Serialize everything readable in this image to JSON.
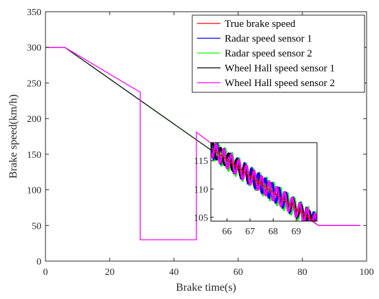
{
  "chart_data": {
    "type": "line",
    "xlabel": "Brake time(s)",
    "ylabel": "Brake speed(km/h)",
    "xlim": [
      0,
      100
    ],
    "ylim": [
      0,
      350
    ],
    "xticks": [
      "0",
      "20",
      "40",
      "60",
      "80",
      "100"
    ],
    "yticks": [
      "0",
      "50",
      "100",
      "150",
      "200",
      "250",
      "300",
      "350"
    ],
    "grid": false,
    "legend_position": "top-right",
    "series": [
      {
        "name": "True brake speed",
        "color": "#ff0000",
        "x": [
          0,
          6,
          85,
          98
        ],
        "y": [
          300,
          300,
          50,
          50
        ]
      },
      {
        "name": "Radar speed sensor 1",
        "color": "#0000ff",
        "x": [
          0,
          6,
          85,
          98
        ],
        "y": [
          300,
          300,
          50,
          50
        ]
      },
      {
        "name": "Radar speed sensor 2",
        "color": "#00ff00",
        "x": [
          0,
          6,
          85,
          98
        ],
        "y": [
          300,
          300,
          50,
          50
        ]
      },
      {
        "name": "Wheel Hall speed sensor 1",
        "color": "#000000",
        "x": [
          0,
          6,
          85,
          98
        ],
        "y": [
          300,
          300,
          50,
          50
        ]
      },
      {
        "name": "Wheel Hall speed sensor 2",
        "color": "#ff00ff",
        "x": [
          0,
          6,
          29.5,
          29.5,
          47,
          47,
          85,
          98
        ],
        "y": [
          300,
          300,
          237,
          30,
          30,
          181,
          50,
          50
        ]
      }
    ],
    "inset": {
      "xlim": [
        65.3,
        69.9
      ],
      "ylim": [
        104.3,
        118.2
      ],
      "xticks": [
        "66",
        "67",
        "68",
        "69"
      ],
      "yticks": [
        "105",
        "110",
        "115"
      ],
      "series": [
        {
          "name": "Radar speed sensor 2",
          "color": "#00ff00",
          "x": [
            65.3,
            69.9
          ],
          "y": [
            117.2,
            103.9
          ],
          "amplitude": 1.8,
          "period": 0.3,
          "phase": 1.2
        },
        {
          "name": "Radar speed sensor 1",
          "color": "#0000ff",
          "x": [
            65.3,
            69.9
          ],
          "y": [
            117.2,
            103.9
          ],
          "amplitude": 1.6,
          "period": 0.3,
          "phase": 2.4
        },
        {
          "name": "Wheel Hall speed sensor 1",
          "color": "#000000",
          "x": [
            65.3,
            69.9
          ],
          "y": [
            117.2,
            103.9
          ],
          "amplitude": 1.3,
          "period": 0.35,
          "phase": 0.3
        },
        {
          "name": "Wheel Hall speed sensor 2",
          "color": "#ff00ff",
          "x": [
            65.3,
            69.9
          ],
          "y": [
            117.2,
            103.9
          ],
          "amplitude": 1.5,
          "period": 0.33,
          "phase": 3.6
        },
        {
          "name": "True brake speed",
          "color": "#ff0000",
          "x": [
            65.3,
            69.9
          ],
          "y": [
            117.2,
            103.9
          ],
          "amplitude": 0,
          "period": 1,
          "phase": 0
        }
      ]
    }
  }
}
